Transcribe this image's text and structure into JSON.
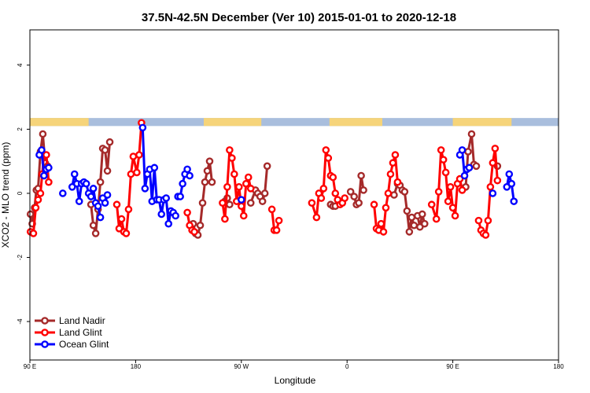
{
  "chart_data": {
    "type": "line",
    "title": "37.5N-42.5N December (Ver 10)   2015-01-01 to 2020-12-18",
    "xlabel": "Longitude",
    "ylabel": "XCO2 - MLO trend (ppm)",
    "xlim": [
      90,
      540
    ],
    "ylim": [
      -5.2,
      5.1
    ],
    "x_ticks": [
      {
        "value": 90,
        "label": "90 E"
      },
      {
        "value": 180,
        "label": "180"
      },
      {
        "value": 270,
        "label": "90 W"
      },
      {
        "value": 360,
        "label": "0"
      },
      {
        "value": 450,
        "label": "90 E"
      },
      {
        "value": 540,
        "label": "180"
      }
    ],
    "y_ticks": [
      -4,
      -2,
      0,
      2,
      4
    ],
    "legend_position": "bottom-left",
    "land_mask_band": {
      "y_range": [
        2.1,
        2.35
      ],
      "land_color": "#f6d47a",
      "ocean_color": "#a9bedd",
      "land_segments": [
        [
          90,
          140
        ],
        [
          238,
          287
        ],
        [
          345,
          390
        ],
        [
          450,
          500
        ]
      ]
    },
    "series": [
      {
        "name": "Land Nadir",
        "color": "#a52a2a",
        "segments": [
          [
            [
              90.5,
              -0.65
            ],
            [
              92,
              -0.95
            ],
            [
              94,
              -0.45
            ],
            [
              95.5,
              0.1
            ],
            [
              97,
              0.15
            ],
            [
              99,
              1.3
            ],
            [
              101,
              1.85
            ],
            [
              103,
              0.95
            ],
            [
              105,
              0.85
            ]
          ],
          [
            [
              142,
              -0.35
            ],
            [
              144,
              -1.0
            ],
            [
              146,
              -1.25
            ],
            [
              148,
              -0.5
            ],
            [
              150,
              0.35
            ],
            [
              152,
              1.4
            ],
            [
              154,
              1.35
            ],
            [
              156,
              0.7
            ],
            [
              158,
              1.6
            ]
          ],
          [
            [
              229,
              -0.95
            ],
            [
              231,
              -1.25
            ],
            [
              233,
              -1.3
            ],
            [
              235,
              -1.0
            ],
            [
              237,
              -0.3
            ],
            [
              239,
              0.35
            ],
            [
              241,
              0.7
            ],
            [
              243,
              1.0
            ],
            [
              245,
              0.35
            ]
          ],
          [
            [
              256,
              -0.25
            ],
            [
              258,
              -0.15
            ],
            [
              260,
              -0.35
            ]
          ],
          [
            [
              278,
              -0.3
            ],
            [
              282,
              0.1
            ],
            [
              284,
              0.0
            ],
            [
              286,
              -0.1
            ],
            [
              288,
              -0.25
            ],
            [
              290,
              0.0
            ],
            [
              292,
              0.85
            ]
          ],
          [
            [
              346,
              -0.35
            ],
            [
              348,
              -0.4
            ],
            [
              350,
              -0.4
            ]
          ],
          [
            [
              363,
              0.05
            ],
            [
              366,
              -0.1
            ],
            [
              368,
              -0.35
            ],
            [
              370,
              -0.3
            ],
            [
              372,
              0.55
            ],
            [
              374,
              0.1
            ]
          ],
          [
            [
              400,
              -0.05
            ],
            [
              403,
              0.3
            ],
            [
              405,
              0.25
            ],
            [
              407,
              0.1
            ],
            [
              409,
              0.05
            ],
            [
              411,
              -0.55
            ],
            [
              413,
              -1.2
            ],
            [
              415,
              -0.75
            ],
            [
              417,
              -1.0
            ]
          ],
          [
            [
              420,
              -0.7
            ],
            [
              422,
              -1.05
            ],
            [
              424,
              -0.65
            ],
            [
              426,
              -0.95
            ]
          ],
          [
            [
              458,
              0.1
            ],
            [
              461,
              0.2
            ],
            [
              463,
              1.3
            ],
            [
              466,
              1.85
            ],
            [
              468,
              0.9
            ],
            [
              470,
              0.85
            ]
          ],
          [
            [
              488,
              0.85
            ]
          ]
        ]
      },
      {
        "name": "Land Glint",
        "color": "#ff0000",
        "segments": [
          [
            [
              90.5,
              -1.2
            ],
            [
              93,
              -1.25
            ],
            [
              95,
              -0.45
            ],
            [
              97,
              -0.2
            ],
            [
              99,
              0.0
            ],
            [
              100.5,
              0.6
            ],
            [
              102,
              1.2
            ],
            [
              104,
              1.2
            ],
            [
              106,
              0.35
            ]
          ],
          [
            [
              164,
              -0.35
            ],
            [
              166,
              -1.1
            ],
            [
              168,
              -0.8
            ],
            [
              170,
              -1.2
            ],
            [
              172,
              -1.25
            ],
            [
              174,
              -0.5
            ],
            [
              176,
              0.6
            ],
            [
              178,
              1.15
            ],
            [
              181,
              0.65
            ],
            [
              183,
              1.2
            ],
            [
              185,
              2.2
            ]
          ],
          [
            [
              224,
              -0.6
            ],
            [
              226,
              -1.0
            ],
            [
              228,
              -1.15
            ],
            [
              230,
              -1.2
            ]
          ],
          [
            [
              254,
              -0.3
            ],
            [
              256,
              -0.8
            ],
            [
              258,
              0.2
            ],
            [
              260,
              1.35
            ],
            [
              262,
              1.1
            ],
            [
              264,
              0.6
            ],
            [
              266,
              -0.25
            ],
            [
              268,
              0.2
            ],
            [
              270,
              -0.4
            ],
            [
              272,
              -0.7
            ],
            [
              274,
              0.3
            ],
            [
              276,
              0.5
            ],
            [
              278,
              0.15
            ]
          ],
          [
            [
              296,
              -0.5
            ],
            [
              298,
              -1.15
            ],
            [
              300,
              -1.15
            ],
            [
              302,
              -0.85
            ]
          ],
          [
            [
              330,
              -0.3
            ],
            [
              334,
              -0.75
            ],
            [
              336,
              0.0
            ],
            [
              338,
              -0.15
            ],
            [
              340,
              0.15
            ],
            [
              342,
              1.35
            ],
            [
              344,
              1.1
            ],
            [
              346,
              0.55
            ],
            [
              348,
              0.5
            ],
            [
              350,
              0.0
            ],
            [
              352,
              -0.2
            ],
            [
              354,
              -0.35
            ],
            [
              356,
              -0.3
            ],
            [
              358,
              -0.15
            ]
          ],
          [
            [
              383,
              -0.35
            ],
            [
              385,
              -1.1
            ],
            [
              387,
              -1.15
            ],
            [
              389,
              -0.95
            ],
            [
              391,
              -1.2
            ],
            [
              393,
              -0.45
            ],
            [
              395,
              0.0
            ],
            [
              397,
              0.6
            ],
            [
              399,
              0.95
            ],
            [
              401,
              1.2
            ],
            [
              403,
              0.35
            ]
          ],
          [
            [
              432,
              -0.35
            ],
            [
              436,
              -0.8
            ],
            [
              438,
              0.05
            ],
            [
              440,
              1.35
            ],
            [
              442,
              1.05
            ],
            [
              444,
              0.65
            ],
            [
              446,
              -0.25
            ],
            [
              448,
              0.2
            ],
            [
              450,
              -0.45
            ],
            [
              452,
              -0.7
            ],
            [
              454,
              0.3
            ],
            [
              456,
              0.45
            ],
            [
              458,
              0.1
            ]
          ],
          [
            [
              472,
              -0.85
            ],
            [
              474,
              -1.15
            ],
            [
              476,
              -1.25
            ],
            [
              478,
              -1.3
            ],
            [
              480,
              -0.85
            ],
            [
              482,
              0.2
            ],
            [
              484,
              0.95
            ],
            [
              486,
              1.4
            ],
            [
              488,
              0.4
            ]
          ]
        ]
      },
      {
        "name": "Ocean Glint",
        "color": "#0000ff",
        "segments": [
          [
            [
              98,
              1.2
            ],
            [
              100,
              1.35
            ],
            [
              102,
              0.55
            ],
            [
              104,
              0.75
            ],
            [
              106,
              0.8
            ]
          ],
          [
            [
              126,
              0.2
            ],
            [
              128,
              0.6
            ],
            [
              130,
              0.3
            ],
            [
              132,
              -0.25
            ],
            [
              134,
              0.3
            ],
            [
              136,
              0.35
            ],
            [
              138,
              0.3
            ],
            [
              140,
              0.0
            ],
            [
              142,
              -0.1
            ],
            [
              144,
              0.15
            ],
            [
              146,
              -0.3
            ],
            [
              148,
              -0.4
            ],
            [
              150,
              -0.75
            ]
          ],
          [
            [
              152,
              -0.15
            ],
            [
              154,
              -0.3
            ],
            [
              156,
              -0.05
            ]
          ],
          [
            [
              186,
              2.05
            ],
            [
              188,
              0.15
            ],
            [
              190,
              0.6
            ],
            [
              192,
              0.75
            ],
            [
              194,
              -0.25
            ],
            [
              196,
              0.8
            ],
            [
              198,
              -0.2
            ],
            [
              200,
              -0.2
            ],
            [
              202,
              -0.65
            ],
            [
              204,
              -0.2
            ],
            [
              206,
              -0.15
            ],
            [
              208,
              -0.95
            ],
            [
              210,
              -0.55
            ],
            [
              212,
              -0.6
            ],
            [
              214,
              -0.7
            ]
          ],
          [
            [
              216,
              -0.1
            ],
            [
              218,
              -0.1
            ],
            [
              220,
              0.3
            ],
            [
              222,
              0.6
            ],
            [
              224,
              0.75
            ],
            [
              226,
              0.55
            ]
          ],
          [
            [
              118,
              0.0
            ]
          ],
          [
            [
              270,
              -0.2
            ]
          ],
          [
            [
              456,
              1.2
            ],
            [
              458,
              1.35
            ],
            [
              460,
              0.55
            ],
            [
              462,
              0.75
            ],
            [
              464,
              0.8
            ]
          ],
          [
            [
              484,
              0.0
            ]
          ],
          [
            [
              496,
              0.2
            ],
            [
              498,
              0.6
            ],
            [
              500,
              0.3
            ],
            [
              502,
              -0.25
            ]
          ]
        ]
      }
    ]
  }
}
